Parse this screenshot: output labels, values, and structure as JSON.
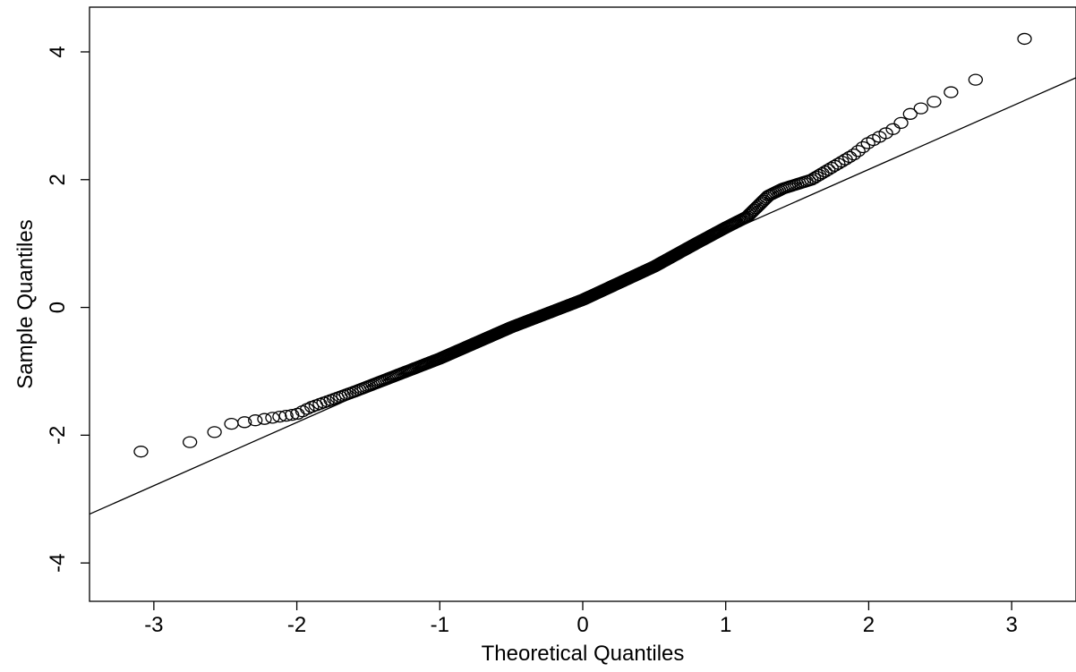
{
  "chart_data": {
    "type": "scatter",
    "title": "",
    "xlabel": "Theoretical Quantiles",
    "ylabel": "Sample Quantiles",
    "xlim": [
      -3.45,
      3.45
    ],
    "ylim": [
      -4.6,
      4.7
    ],
    "x_ticks": [
      -3,
      -2,
      -1,
      0,
      1,
      2,
      3
    ],
    "y_ticks": [
      -4,
      -2,
      0,
      2,
      4
    ],
    "x_tick_labels": [
      "-3",
      "-2",
      "-1",
      "0",
      "1",
      "2",
      "3"
    ],
    "y_tick_labels": [
      "-4",
      "-2",
      "0",
      "2",
      "4"
    ],
    "grid": false,
    "marker": "open-circle",
    "n_points": 500,
    "reference_line": {
      "intercept": 0.18,
      "slope": 0.99
    },
    "sample_quantile_anchors": [
      [
        -3.1,
        -2.26
      ],
      [
        -2.8,
        -2.15
      ],
      [
        -2.6,
        -1.99
      ],
      [
        -2.5,
        -1.83
      ],
      [
        -2.4,
        -1.81
      ],
      [
        -2.3,
        -1.77
      ],
      [
        -2.0,
        -1.67
      ],
      [
        -1.9,
        -1.56
      ],
      [
        -1.6,
        -1.32
      ],
      [
        -1.0,
        -0.8
      ],
      [
        -0.5,
        -0.31
      ],
      [
        0.0,
        0.12
      ],
      [
        0.5,
        0.64
      ],
      [
        0.8,
        1.01
      ],
      [
        1.0,
        1.25
      ],
      [
        1.15,
        1.42
      ],
      [
        1.3,
        1.75
      ],
      [
        1.4,
        1.86
      ],
      [
        1.6,
        2.0
      ],
      [
        1.9,
        2.4
      ],
      [
        2.0,
        2.58
      ],
      [
        2.1,
        2.7
      ],
      [
        2.2,
        2.83
      ],
      [
        2.3,
        3.05
      ],
      [
        2.4,
        3.15
      ],
      [
        2.5,
        3.27
      ],
      [
        2.6,
        3.4
      ],
      [
        2.7,
        3.42
      ],
      [
        2.8,
        3.72
      ],
      [
        3.1,
        4.22
      ]
    ]
  }
}
